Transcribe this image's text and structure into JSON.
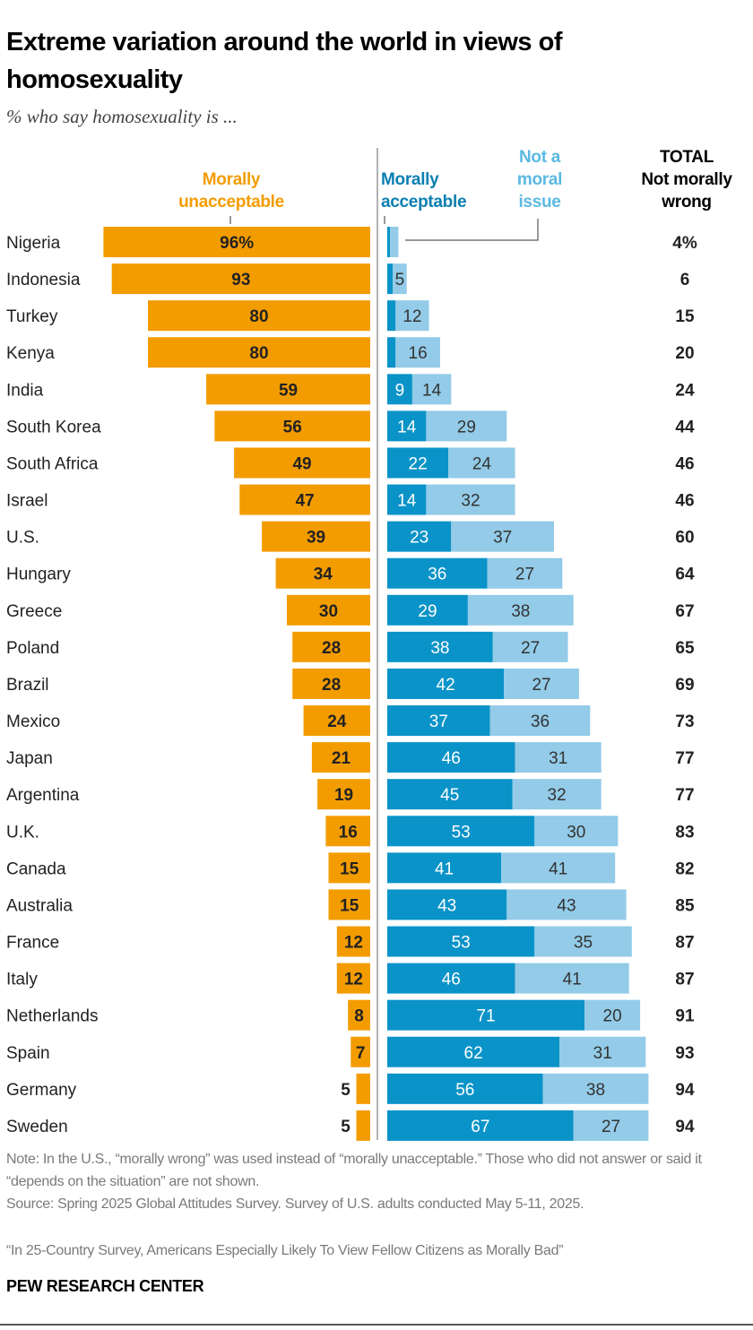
{
  "title": "Extreme variation around the world in views of homosexuality",
  "subtitle": "% who say homosexuality is ...",
  "headers": {
    "unacceptable": "Morally unacceptable",
    "acceptable": "Morally acceptable",
    "not_moral": "Not a moral issue",
    "total_line1": "TOTAL",
    "total_line2": "Not morally wrong"
  },
  "colors": {
    "unacceptable": "#f39c00",
    "acceptable": "#0a93c8",
    "not_moral": "#93cbe8",
    "acceptable_text": "#0b7fb1",
    "not_moral_text": "#5bb9e2"
  },
  "chart_data": {
    "type": "bar",
    "categories": [
      "Nigeria",
      "Indonesia",
      "Turkey",
      "Kenya",
      "India",
      "South Korea",
      "South Africa",
      "Israel",
      "U.S.",
      "Hungary",
      "Greece",
      "Poland",
      "Brazil",
      "Mexico",
      "Japan",
      "Argentina",
      "U.K.",
      "Canada",
      "Australia",
      "France",
      "Italy",
      "Netherlands",
      "Spain",
      "Germany",
      "Sweden"
    ],
    "series": [
      {
        "name": "Morally unacceptable",
        "values": [
          96,
          93,
          80,
          80,
          59,
          56,
          49,
          47,
          39,
          34,
          30,
          28,
          28,
          24,
          21,
          19,
          16,
          15,
          15,
          12,
          12,
          8,
          7,
          5,
          5
        ]
      },
      {
        "name": "Morally acceptable",
        "values": [
          1,
          2,
          3,
          3,
          9,
          14,
          22,
          14,
          23,
          36,
          29,
          38,
          42,
          37,
          46,
          45,
          53,
          41,
          43,
          53,
          46,
          71,
          62,
          56,
          67
        ]
      },
      {
        "name": "Not a moral issue",
        "values": [
          3,
          5,
          12,
          16,
          14,
          29,
          24,
          32,
          37,
          27,
          38,
          27,
          27,
          36,
          31,
          32,
          30,
          41,
          43,
          35,
          41,
          20,
          31,
          38,
          27
        ]
      },
      {
        "name": "TOTAL Not morally wrong",
        "values": [
          4,
          6,
          15,
          20,
          24,
          44,
          46,
          46,
          60,
          64,
          67,
          65,
          69,
          73,
          77,
          77,
          83,
          82,
          85,
          87,
          87,
          91,
          93,
          94,
          94
        ]
      }
    ],
    "first_row_suffix": "%",
    "xlim": [
      0,
      100
    ]
  },
  "notes": {
    "note": "Note: In the U.S., “morally wrong” was used instead of “morally unacceptable.” Those who did not answer or said it “depends on the situation” are not shown.",
    "source": "Source: Spring 2025 Global Attitudes Survey. Survey of U.S. adults conducted May 5-11, 2025.",
    "report": "“In 25-Country Survey, Americans Especially Likely To View Fellow Citizens as Morally Bad”"
  },
  "footer": "PEW RESEARCH CENTER"
}
